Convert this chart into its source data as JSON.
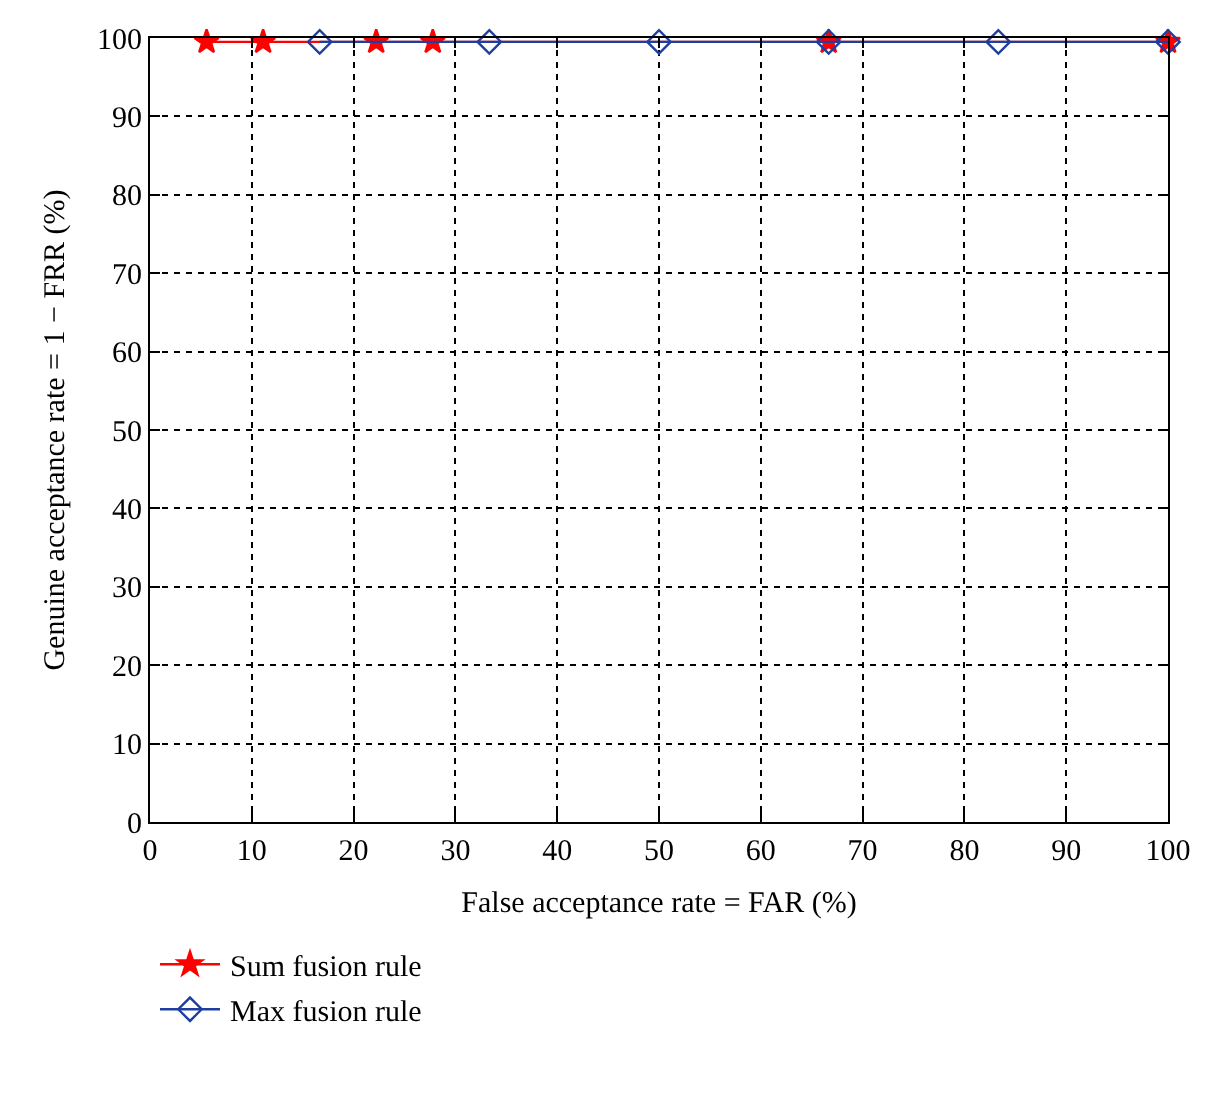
{
  "chart_data": {
    "type": "line",
    "xlabel": "False acceptance rate = FAR (%)",
    "ylabel": "Genuine acceptance rate = 1 − FRR (%)",
    "xlim": [
      0,
      100
    ],
    "xticks": [
      0,
      10,
      20,
      30,
      40,
      50,
      60,
      70,
      80,
      90,
      100
    ],
    "ylim": [
      0,
      100
    ],
    "yticks": [
      0,
      10,
      20,
      30,
      40,
      50,
      60,
      70,
      80,
      90,
      100
    ],
    "grid": true,
    "legend": "bottom left",
    "line_style": "solid",
    "series": [
      {
        "name": "Sum fusion rule",
        "color": "#ff0000",
        "marker": "star",
        "x": [
          5.56,
          11.11,
          22.22,
          27.78,
          66.67,
          100
        ],
        "values": [
          99.5,
          99.5,
          99.5,
          99.5,
          99.5,
          99.5
        ]
      },
      {
        "name": "Max fusion rule",
        "color": "#1f3f9f",
        "marker": "diamond",
        "x": [
          16.67,
          33.33,
          50,
          66.67,
          83.33,
          100
        ],
        "values": [
          99.5,
          99.5,
          99.5,
          99.5,
          99.5,
          99.5
        ]
      }
    ]
  }
}
